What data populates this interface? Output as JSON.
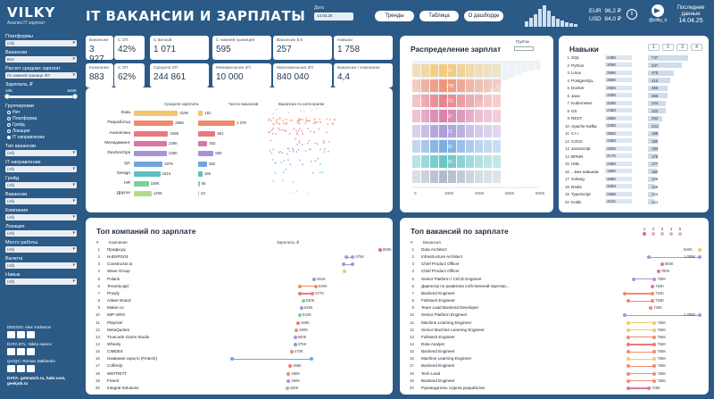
{
  "brand": {
    "title": "VILKY",
    "subtitle": "Анализ IT зарплат"
  },
  "header": {
    "title": "IT ВАКАНСИИ И ЗАРПЛАТЫ",
    "date_label": "Дата",
    "date_value": "14.04.25",
    "btn_trends": "Тренды",
    "btn_table": "Таблица",
    "btn_dash": "О дашборде",
    "eur": "EUR",
    "eur_v": "96,2 ₽",
    "usd": "USD",
    "usd_v": "84,0 ₽",
    "tg_handle": "@vilky_it",
    "upd_label": "Последние данные",
    "upd_date": "14.04.25"
  },
  "sidebar": {
    "platform_l": "Платформы",
    "platform_v": "(All)",
    "vacancy_l": "Вакансии",
    "vacancy_v": "Все",
    "calc_l": "Расчет средних зарплат",
    "calc_v": "По нижней границе ЗП",
    "salary_l": "Зарплата, ₽",
    "s_min": "10K",
    "s_max": "840K",
    "group_l": "Группировки",
    "g1": "Нет",
    "g2": "Платформа",
    "g3": "Грейд",
    "g4": "Локация",
    "g5": "IT направление",
    "type_l": "Тип вакансии",
    "type_v": "(All)",
    "dir_l": "IT направление",
    "dir_v": "(All)",
    "grade_l": "Грейд",
    "grade_v": "(All)",
    "vac2_l": "Вакансии",
    "vac2_v": "(All)",
    "comp_l": "Компания",
    "comp_v": "(All)",
    "loc_l": "Локация",
    "loc_v": "(All)",
    "work_l": "Место работы",
    "work_v": "(All)",
    "cur_l": "Валюта",
    "cur_v": "(All)",
    "skill_l": "Навык",
    "skill_v": "(All)"
  },
  "credits": {
    "design": "DESIGN: Alex Yurlamov",
    "data_etl": "DATA ETL: Nikita Ivanov",
    "qa": "QA/QC: Roman Sakhenko",
    "source": "DATA: getmatch.ru, habr.com, geekjob.ru"
  },
  "kpis": [
    {
      "l": "Вакансии",
      "v": "3 927"
    },
    {
      "l": "С ЗП",
      "v": "42%"
    },
    {
      "l": "С вилкой",
      "v": "1 071"
    },
    {
      "l": "С нижней границей",
      "v": "595"
    },
    {
      "l": "Вакансии $,€",
      "v": "257"
    },
    {
      "l": "Навыки",
      "v": "1 758"
    },
    {
      "l": "Компании",
      "v": "883"
    },
    {
      "l": "С ЗП",
      "v": "62%"
    },
    {
      "l": "Средняя ЗП",
      "v": "244 861"
    },
    {
      "l": "Минимальная ЗП",
      "v": "10 000"
    },
    {
      "l": "Максимальная ЗП",
      "v": "840 040"
    },
    {
      "l": "Вакансии / компанию",
      "v": "4,4"
    }
  ],
  "dir_chart": {
    "h_salary": "Средняя зарплата",
    "h_count": "Число вакансий",
    "h_scatter": "Вакансии по категориям",
    "rows": [
      {
        "name": "Data",
        "sal": "319K",
        "cnt": "181",
        "sw": 0.95,
        "cw": 0.1,
        "color": "#f2c66d"
      },
      {
        "name": "Разработка",
        "sal": "285K",
        "cnt": "1 378",
        "sw": 0.85,
        "cw": 0.76,
        "color": "#f08a6c"
      },
      {
        "name": "Аналитика",
        "sal": "248K",
        "cnt": "661",
        "sw": 0.74,
        "cw": 0.36,
        "color": "#e8787f"
      },
      {
        "name": "Менеджмент",
        "sal": "238K",
        "cnt": "352",
        "sw": 0.71,
        "cw": 0.19,
        "color": "#d976a3"
      },
      {
        "name": "DevSecOps",
        "sal": "238K",
        "cnt": "580",
        "sw": 0.71,
        "cw": 0.32,
        "color": "#a694d6"
      },
      {
        "name": "QA",
        "sal": "207K",
        "cnt": "338",
        "sw": 0.62,
        "cw": 0.18,
        "color": "#6fa6de"
      },
      {
        "name": "Design",
        "sal": "191K",
        "cnt": "165",
        "sw": 0.57,
        "cw": 0.09,
        "color": "#5cc1c1"
      },
      {
        "name": "HR",
        "sal": "108K",
        "cnt": "55",
        "sw": 0.32,
        "cw": 0.03,
        "color": "#7fcf9b"
      },
      {
        "name": "Другое",
        "sal": "129K",
        "cnt": "23",
        "sw": 0.38,
        "cw": 0.015,
        "color": "#b8d98c"
      }
    ]
  },
  "dist": {
    "title": "Распределение зарплат",
    "groups_label": "Группы",
    "ticks": [
      "0",
      "200K",
      "400K",
      "600K",
      "800K"
    ],
    "bins": [
      {
        "c": "#f2c66d",
        "w": 0.25,
        "v": "47"
      },
      {
        "c": "#f08a6c",
        "w": 0.23,
        "v": "279"
      },
      {
        "c": "#e8787f",
        "w": 0.3,
        "v": "271"
      },
      {
        "c": "#d976a3",
        "w": 0.3,
        "v": "97"
      },
      {
        "c": "#a694d6",
        "w": 0.28,
        "v": "71"
      },
      {
        "c": "#6fa6de",
        "w": 0.22,
        "v": "50"
      },
      {
        "c": "#5cc1c1",
        "w": 0.2,
        "v": "20"
      },
      {
        "c": "#aab4c8",
        "w": 0.12,
        "v": ""
      }
    ]
  },
  "skills": {
    "title": "Навыки",
    "pages": [
      "1",
      "2",
      "3",
      "4"
    ],
    "items": [
      {
        "n": "1",
        "name": "SQL",
        "v": "249K",
        "c": "747",
        "w": 0.75
      },
      {
        "n": "2",
        "name": "Python",
        "v": "306K",
        "c": "637",
        "w": 0.64
      },
      {
        "n": "3",
        "name": "Linux",
        "v": "299K",
        "c": "475",
        "w": 0.48
      },
      {
        "n": "4",
        "name": "PostgreSQL",
        "v": "256K",
        "c": "415",
        "w": 0.42
      },
      {
        "n": "5",
        "name": "Docker",
        "v": "255K",
        "c": "366",
        "w": 0.37
      },
      {
        "n": "6",
        "name": "Java",
        "v": "330K",
        "c": "365",
        "w": 0.37
      },
      {
        "n": "7",
        "name": "Kubernetes",
        "v": "326K",
        "c": "324",
        "w": 0.33
      },
      {
        "n": "8",
        "name": "Git",
        "v": "246K",
        "c": "323",
        "w": 0.33
      },
      {
        "n": "9",
        "name": "REST",
        "v": "289K",
        "c": "264",
        "w": 0.27
      },
      {
        "n": "10",
        "name": "Apache Kafka",
        "v": "326K",
        "c": "221",
        "w": 0.22
      },
      {
        "n": "11",
        "name": "C++",
        "v": "355K",
        "c": "195",
        "w": 0.2
      },
      {
        "n": "12",
        "name": "CI/CD",
        "v": "335K",
        "c": "190",
        "w": 0.19
      },
      {
        "n": "13",
        "name": "JavaScript",
        "v": "283K",
        "c": "183",
        "w": 0.18
      },
      {
        "n": "14",
        "name": "BPMN",
        "v": "217K",
        "c": "178",
        "w": 0.18
      },
      {
        "n": "15",
        "name": "UML",
        "v": "236K",
        "c": "177",
        "w": 0.18
      },
      {
        "n": "16",
        "name": "...Без навыков",
        "v": "156K",
        "c": "160",
        "w": 0.16
      },
      {
        "n": "17",
        "name": "Golang",
        "v": "368K",
        "c": "136",
        "w": 0.14
      },
      {
        "n": "18",
        "name": "Redis",
        "v": "325K",
        "c": "136",
        "w": 0.14
      },
      {
        "n": "19",
        "name": "TypeScript",
        "v": "268K",
        "c": "124",
        "w": 0.12
      },
      {
        "n": "20",
        "name": "Kotlin",
        "v": "311K",
        "c": "121",
        "w": 0.12
      }
    ]
  },
  "top_comp": {
    "title": "Топ компаний по зарплате",
    "h_n": "#",
    "h_name": "Компания",
    "h_sal": "Зарплата, ₽",
    "items": [
      {
        "n": "1",
        "name": "Профи.ру",
        "lo": 1,
        "hi": 1,
        "lbl": "800K",
        "c": "#e06c6c"
      },
      {
        "n": "2",
        "name": "HubSPOrt3",
        "lo": 0.79,
        "hi": 0.83,
        "lbl": "675K",
        "c": "#a694d6"
      },
      {
        "n": "3",
        "name": "Constructor.io",
        "lo": 0.77,
        "hi": 0.83,
        "lbl": "",
        "c": "#a694d6"
      },
      {
        "n": "4",
        "name": "Wave Group",
        "lo": 0.78,
        "hi": 0.78,
        "lbl": "",
        "c": "#f2c66d"
      },
      {
        "n": "5",
        "name": "Polaris",
        "lo": 0.59,
        "hi": 0.59,
        "lbl": "551K",
        "c": "#a694d6"
      },
      {
        "n": "6",
        "name": "TenantLogic",
        "lo": 0.5,
        "hi": 0.6,
        "lbl": "540K",
        "c": "#f08a6c"
      },
      {
        "n": "7",
        "name": "Prowly",
        "lo": 0.5,
        "hi": 0.58,
        "lbl": "577K",
        "c": "#e8787f"
      },
      {
        "n": "8",
        "name": "Adwer Board",
        "lo": 0.52,
        "hi": 0.52,
        "lbl": "530K",
        "c": "#7fcf9b"
      },
      {
        "n": "9",
        "name": "Maker.co",
        "lo": 0.51,
        "hi": 0.51,
        "lbl": "525K",
        "c": "#a694d6"
      },
      {
        "n": "10",
        "name": "MIP-ORG",
        "lo": 0.5,
        "hi": 0.5,
        "lbl": "510K",
        "c": "#7fcf9b"
      },
      {
        "n": "11",
        "name": "Playrixel",
        "lo": 0.49,
        "hi": 0.49,
        "lbl": "506K",
        "c": "#e8787f"
      },
      {
        "n": "12",
        "name": "MetaQuotes",
        "lo": 0.48,
        "hi": 0.48,
        "lbl": "500K",
        "c": "#f08a6c"
      },
      {
        "n": "13",
        "name": "Truecode Game Studio",
        "lo": 0.47,
        "hi": 0.47,
        "lbl": "500K",
        "c": "#a694d6"
      },
      {
        "n": "14",
        "name": "Wheely",
        "lo": 0.47,
        "hi": 0.47,
        "lbl": "475K",
        "c": "#6fa6de"
      },
      {
        "n": "15",
        "name": "CIMDEX",
        "lo": 0.45,
        "hi": 0.45,
        "lbl": "470K",
        "c": "#f08a6c"
      },
      {
        "n": "16",
        "name": "Название скрыто (Fintech)",
        "lo": 0.08,
        "hi": 0.57,
        "lbl": "",
        "c": "#6fa6de"
      },
      {
        "n": "17",
        "name": "Cofferdy",
        "lo": 0.44,
        "hi": 0.44,
        "lbl": "455K",
        "c": "#e8787f"
      },
      {
        "n": "18",
        "name": "WETRETT",
        "lo": 0.43,
        "hi": 0.43,
        "lbl": "450K",
        "c": "#f08a6c"
      },
      {
        "n": "19",
        "name": "Freent",
        "lo": 0.43,
        "hi": 0.43,
        "lbl": "450K",
        "c": "#a694d6"
      },
      {
        "n": "20",
        "name": "Integral Solutions",
        "lo": 0.42,
        "hi": 0.42,
        "lbl": "440K",
        "c": "#7fcf9b"
      }
    ]
  },
  "top_vac": {
    "title": "Топ вакансий по зарплате",
    "h_n": "#",
    "h_name": "Вакансия",
    "pages": [
      "1",
      "2",
      "3",
      "4",
      "5"
    ],
    "items": [
      {
        "n": "1",
        "name": "Data Architect",
        "lo": 0.98,
        "hi": 0.98,
        "lbl": "840K",
        "c": "#f2c66d"
      },
      {
        "n": "2",
        "name": "Infrastructure Architect",
        "lo": 0.71,
        "hi": 0.98,
        "lbl": "1 008K",
        "c": "#a694d6"
      },
      {
        "n": "3",
        "name": "Chief Product Officer",
        "lo": 0.78,
        "hi": 0.78,
        "lbl": "800K",
        "c": "#e8787f"
      },
      {
        "n": "4",
        "name": "Chief Product Officer",
        "lo": 0.76,
        "hi": 0.76,
        "lbl": "780K",
        "c": "#d976a3"
      },
      {
        "n": "5",
        "name": "Senior Platform / CI/CD Engineer",
        "lo": 0.63,
        "hi": 0.74,
        "lbl": "750K",
        "c": "#a694d6"
      },
      {
        "n": "6",
        "name": "Директор по развитию собственной партнер...",
        "lo": 0.73,
        "hi": 0.73,
        "lbl": "750K",
        "c": "#d976a3"
      },
      {
        "n": "7",
        "name": "Backend Engineer",
        "lo": 0.58,
        "hi": 0.73,
        "lbl": "752K",
        "c": "#f08a6c"
      },
      {
        "n": "8",
        "name": "Fullstack Engineer",
        "lo": 0.6,
        "hi": 0.73,
        "lbl": "750K",
        "c": "#f08a6c"
      },
      {
        "n": "9",
        "name": "Team Lead Backend Developer",
        "lo": 0.72,
        "hi": 0.72,
        "lbl": "740K",
        "c": "#f08a6c"
      },
      {
        "n": "10",
        "name": "Senior Platform Engineer",
        "lo": 0.58,
        "hi": 0.98,
        "lbl": "1 008K",
        "c": "#a694d6"
      },
      {
        "n": "11",
        "name": "Machine Learning Engineer",
        "lo": 0.6,
        "hi": 0.74,
        "lbl": "756K",
        "c": "#f2c66d"
      },
      {
        "n": "12",
        "name": "Senior Machine Learning Engineer",
        "lo": 0.6,
        "hi": 0.74,
        "lbl": "756K",
        "c": "#f2c66d"
      },
      {
        "n": "13",
        "name": "Fullstack Engineer",
        "lo": 0.6,
        "hi": 0.74,
        "lbl": "756K",
        "c": "#f08a6c"
      },
      {
        "n": "14",
        "name": "Data Analyst",
        "lo": 0.6,
        "hi": 0.74,
        "lbl": "756K",
        "c": "#e8787f"
      },
      {
        "n": "15",
        "name": "Backend Engineer",
        "lo": 0.6,
        "hi": 0.74,
        "lbl": "756K",
        "c": "#f08a6c"
      },
      {
        "n": "16",
        "name": "Machine Learning Engineer",
        "lo": 0.6,
        "hi": 0.74,
        "lbl": "756K",
        "c": "#f2c66d"
      },
      {
        "n": "17",
        "name": "Backend Engineer",
        "lo": 0.6,
        "hi": 0.74,
        "lbl": "756K",
        "c": "#f08a6c"
      },
      {
        "n": "18",
        "name": "Tech Lead",
        "lo": 0.6,
        "hi": 0.74,
        "lbl": "756K",
        "c": "#f08a6c"
      },
      {
        "n": "19",
        "name": "Backend Engineer",
        "lo": 0.6,
        "hi": 0.74,
        "lbl": "756K",
        "c": "#f08a6c"
      },
      {
        "n": "20",
        "name": "Руководитель отдела разработки",
        "lo": 0.6,
        "hi": 0.71,
        "lbl": "725K",
        "c": "#d976a3"
      }
    ]
  }
}
